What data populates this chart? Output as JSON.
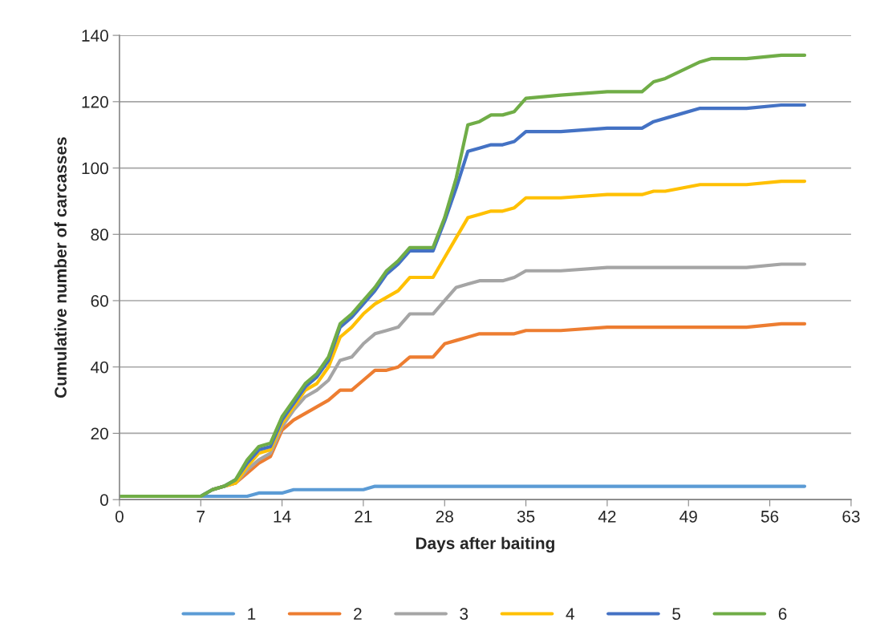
{
  "chart_data": {
    "type": "line",
    "xlabel": "Days after baiting",
    "ylabel": "Cumulative number of carcasses",
    "xlim": [
      0,
      63
    ],
    "xticks": [
      0,
      7,
      14,
      21,
      28,
      35,
      42,
      49,
      56,
      63
    ],
    "ylim": [
      0,
      140
    ],
    "yticks": [
      0,
      20,
      40,
      60,
      80,
      100,
      120,
      140
    ],
    "grid": "y",
    "legend": "bottom",
    "marker": "none",
    "line_style": "solid",
    "series": [
      {
        "name": "1",
        "color": "#5b9bd5",
        "x": [
          0,
          7,
          10,
          11,
          12,
          14,
          15,
          21,
          22,
          59
        ],
        "values": [
          1,
          1,
          1,
          1,
          2,
          2,
          3,
          3,
          4,
          4
        ]
      },
      {
        "name": "2",
        "color": "#ed7d31",
        "x": [
          8,
          9,
          10,
          11,
          12,
          13,
          14,
          15,
          16,
          17,
          18,
          19,
          20,
          21,
          22,
          23,
          24,
          25,
          26,
          27,
          28,
          29,
          30,
          31,
          34,
          35,
          38,
          42,
          54,
          57,
          59
        ],
        "values": [
          3,
          4,
          5,
          8,
          11,
          13,
          21,
          24,
          26,
          28,
          30,
          33,
          33,
          36,
          39,
          39,
          40,
          43,
          43,
          43,
          47,
          48,
          49,
          50,
          50,
          51,
          51,
          52,
          52,
          53,
          53
        ]
      },
      {
        "name": "3",
        "color": "#a5a5a5",
        "x": [
          0,
          7,
          8,
          9,
          10,
          11,
          12,
          13,
          14,
          15,
          16,
          17,
          18,
          19,
          20,
          21,
          22,
          23,
          24,
          25,
          26,
          27,
          28,
          29,
          30,
          31,
          33,
          34,
          35,
          38,
          42,
          54,
          57,
          59
        ],
        "values": [
          1,
          1,
          3,
          4,
          5,
          9,
          12,
          14,
          22,
          27,
          31,
          33,
          36,
          42,
          43,
          47,
          50,
          51,
          52,
          56,
          56,
          56,
          60,
          64,
          65,
          66,
          66,
          67,
          69,
          69,
          70,
          70,
          71,
          71
        ]
      },
      {
        "name": "4",
        "color": "#ffc000",
        "x": [
          8,
          9,
          10,
          11,
          12,
          13,
          14,
          15,
          16,
          17,
          18,
          19,
          20,
          21,
          22,
          23,
          24,
          25,
          26,
          27,
          28,
          29,
          30,
          31,
          32,
          33,
          34,
          35,
          38,
          42,
          45,
          46,
          47,
          50,
          54,
          57,
          59
        ],
        "values": [
          3,
          4,
          5,
          10,
          14,
          15,
          23,
          28,
          33,
          35,
          40,
          49,
          52,
          56,
          59,
          61,
          63,
          67,
          67,
          67,
          73,
          79,
          85,
          86,
          87,
          87,
          88,
          91,
          91,
          92,
          92,
          93,
          93,
          95,
          95,
          96,
          96
        ]
      },
      {
        "name": "5",
        "color": "#4472c4",
        "x": [
          0,
          7,
          8,
          9,
          10,
          11,
          12,
          13,
          14,
          15,
          16,
          17,
          18,
          19,
          20,
          21,
          22,
          23,
          24,
          25,
          26,
          27,
          28,
          29,
          30,
          31,
          32,
          33,
          34,
          35,
          38,
          42,
          45,
          46,
          48,
          50,
          54,
          57,
          59
        ],
        "values": [
          1,
          1,
          3,
          4,
          6,
          11,
          15,
          16,
          24,
          29,
          34,
          37,
          42,
          52,
          55,
          59,
          63,
          68,
          71,
          75,
          75,
          75,
          84,
          94,
          105,
          106,
          107,
          107,
          108,
          111,
          111,
          112,
          112,
          114,
          116,
          118,
          118,
          119,
          119
        ]
      },
      {
        "name": "6",
        "color": "#70ad47",
        "x": [
          0,
          7,
          8,
          9,
          10,
          11,
          12,
          13,
          14,
          15,
          16,
          17,
          18,
          19,
          20,
          21,
          22,
          23,
          24,
          25,
          26,
          27,
          28,
          29,
          30,
          31,
          32,
          33,
          34,
          35,
          38,
          42,
          45,
          46,
          47,
          50,
          51,
          54,
          57,
          59
        ],
        "values": [
          1,
          1,
          3,
          4,
          6,
          12,
          16,
          17,
          25,
          30,
          35,
          38,
          43,
          53,
          56,
          60,
          64,
          69,
          72,
          76,
          76,
          76,
          85,
          97,
          113,
          114,
          116,
          116,
          117,
          121,
          122,
          123,
          123,
          126,
          127,
          132,
          133,
          133,
          134,
          134
        ]
      }
    ]
  }
}
